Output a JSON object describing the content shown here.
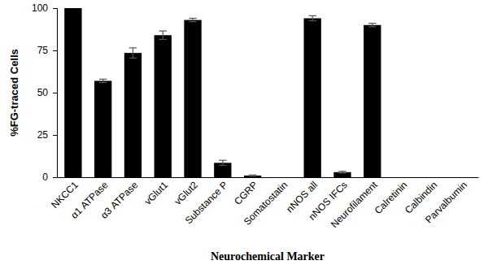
{
  "chart_data": {
    "type": "bar",
    "x_label": "Neurochemical Marker",
    "y_label": "%FG-traced Cells",
    "categories": [
      "NKCC1",
      "α1 ATPase",
      "α3 ATPase",
      "vGlut1",
      "vGlut2",
      "Substance P",
      "CGRP",
      "Somatostatin",
      "nNOS all",
      "nNOS IFCs",
      "Neurofilament",
      "Calretinin",
      "Calbindin",
      "Parvalbumin"
    ],
    "values": [
      100,
      57,
      73.5,
      84,
      93,
      8.5,
      1,
      0,
      94,
      3,
      90,
      0,
      0,
      0
    ],
    "errors": [
      0,
      1,
      3,
      2.5,
      1,
      1.5,
      0.3,
      0,
      1.5,
      0.5,
      1,
      0,
      0,
      0
    ],
    "color": "#000000",
    "ylim": [
      0,
      100
    ],
    "yticks": [
      0,
      25,
      50,
      75,
      100
    ],
    "grid": false
  }
}
